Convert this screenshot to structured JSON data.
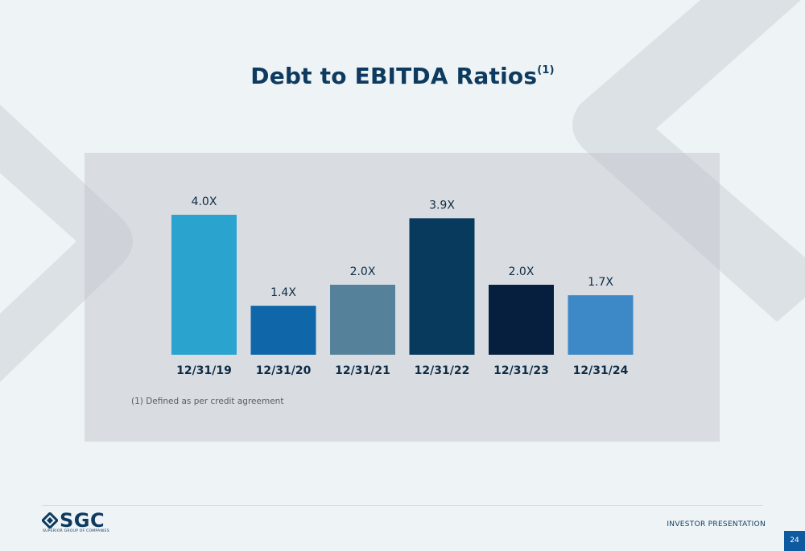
{
  "title": "Debt to EBITDA Ratios",
  "title_superscript": "(1)",
  "footnote": "(1)  Defined as per credit agreement",
  "logo": {
    "text": "SGC",
    "subtitle": "SUPERIOR GROUP OF COMPANIES"
  },
  "footer": {
    "label": "INVESTOR PRESENTATION",
    "page_number": "24"
  },
  "colors": {
    "title": "#0d3a5e",
    "footer_accent": "#0d5aa1"
  },
  "chart_data": {
    "type": "bar",
    "categories": [
      "12/31/19",
      "12/31/20",
      "12/31/21",
      "12/31/22",
      "12/31/23",
      "12/31/24"
    ],
    "values": [
      4.0,
      1.4,
      2.0,
      3.9,
      2.0,
      1.7
    ],
    "value_labels": [
      "4.0X",
      "1.4X",
      "2.0X",
      "3.9X",
      "2.0X",
      "1.7X"
    ],
    "colors": [
      "#2aa3cf",
      "#0f67a9",
      "#56819b",
      "#073a5c",
      "#061f3e",
      "#3d88c6"
    ],
    "title": "",
    "xlabel": "",
    "ylabel": "",
    "ylim": [
      0,
      4.0
    ],
    "grid": false,
    "legend": "none"
  }
}
